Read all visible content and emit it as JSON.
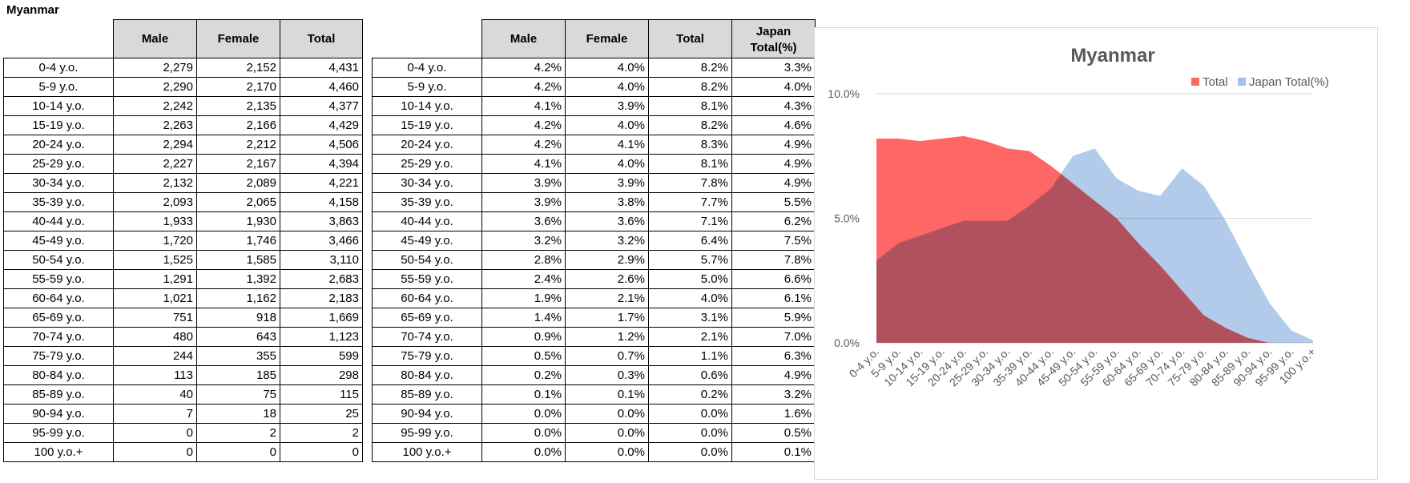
{
  "sheet_title": "Myanmar",
  "counts_table": {
    "headers": [
      "Male",
      "Female",
      "Total"
    ],
    "rows": [
      {
        "age": "0-4 y.o.",
        "male": "2,279",
        "female": "2,152",
        "total": "4,431"
      },
      {
        "age": "5-9 y.o.",
        "male": "2,290",
        "female": "2,170",
        "total": "4,460"
      },
      {
        "age": "10-14 y.o.",
        "male": "2,242",
        "female": "2,135",
        "total": "4,377"
      },
      {
        "age": "15-19 y.o.",
        "male": "2,263",
        "female": "2,166",
        "total": "4,429"
      },
      {
        "age": "20-24 y.o.",
        "male": "2,294",
        "female": "2,212",
        "total": "4,506"
      },
      {
        "age": "25-29 y.o.",
        "male": "2,227",
        "female": "2,167",
        "total": "4,394"
      },
      {
        "age": "30-34 y.o.",
        "male": "2,132",
        "female": "2,089",
        "total": "4,221"
      },
      {
        "age": "35-39 y.o.",
        "male": "2,093",
        "female": "2,065",
        "total": "4,158"
      },
      {
        "age": "40-44 y.o.",
        "male": "1,933",
        "female": "1,930",
        "total": "3,863"
      },
      {
        "age": "45-49 y.o.",
        "male": "1,720",
        "female": "1,746",
        "total": "3,466"
      },
      {
        "age": "50-54 y.o.",
        "male": "1,525",
        "female": "1,585",
        "total": "3,110"
      },
      {
        "age": "55-59 y.o.",
        "male": "1,291",
        "female": "1,392",
        "total": "2,683"
      },
      {
        "age": "60-64 y.o.",
        "male": "1,021",
        "female": "1,162",
        "total": "2,183"
      },
      {
        "age": "65-69 y.o.",
        "male": "751",
        "female": "918",
        "total": "1,669"
      },
      {
        "age": "70-74 y.o.",
        "male": "480",
        "female": "643",
        "total": "1,123"
      },
      {
        "age": "75-79 y.o.",
        "male": "244",
        "female": "355",
        "total": "599"
      },
      {
        "age": "80-84 y.o.",
        "male": "113",
        "female": "185",
        "total": "298"
      },
      {
        "age": "85-89 y.o.",
        "male": "40",
        "female": "75",
        "total": "115"
      },
      {
        "age": "90-94 y.o.",
        "male": "7",
        "female": "18",
        "total": "25"
      },
      {
        "age": "95-99 y.o.",
        "male": "0",
        "female": "2",
        "total": "2"
      },
      {
        "age": "100 y.o.+",
        "male": "0",
        "female": "0",
        "total": "0"
      }
    ]
  },
  "pct_table": {
    "headers": [
      "Male",
      "Female",
      "Total",
      "Japan",
      "Total(%)"
    ],
    "rows": [
      {
        "age": "0-4 y.o.",
        "male": "4.2%",
        "female": "4.0%",
        "total": "8.2%",
        "japan": "3.3%"
      },
      {
        "age": "5-9 y.o.",
        "male": "4.2%",
        "female": "4.0%",
        "total": "8.2%",
        "japan": "4.0%"
      },
      {
        "age": "10-14 y.o.",
        "male": "4.1%",
        "female": "3.9%",
        "total": "8.1%",
        "japan": "4.3%"
      },
      {
        "age": "15-19 y.o.",
        "male": "4.2%",
        "female": "4.0%",
        "total": "8.2%",
        "japan": "4.6%"
      },
      {
        "age": "20-24 y.o.",
        "male": "4.2%",
        "female": "4.1%",
        "total": "8.3%",
        "japan": "4.9%"
      },
      {
        "age": "25-29 y.o.",
        "male": "4.1%",
        "female": "4.0%",
        "total": "8.1%",
        "japan": "4.9%"
      },
      {
        "age": "30-34 y.o.",
        "male": "3.9%",
        "female": "3.9%",
        "total": "7.8%",
        "japan": "4.9%"
      },
      {
        "age": "35-39 y.o.",
        "male": "3.9%",
        "female": "3.8%",
        "total": "7.7%",
        "japan": "5.5%"
      },
      {
        "age": "40-44 y.o.",
        "male": "3.6%",
        "female": "3.6%",
        "total": "7.1%",
        "japan": "6.2%"
      },
      {
        "age": "45-49 y.o.",
        "male": "3.2%",
        "female": "3.2%",
        "total": "6.4%",
        "japan": "7.5%"
      },
      {
        "age": "50-54 y.o.",
        "male": "2.8%",
        "female": "2.9%",
        "total": "5.7%",
        "japan": "7.8%"
      },
      {
        "age": "55-59 y.o.",
        "male": "2.4%",
        "female": "2.6%",
        "total": "5.0%",
        "japan": "6.6%"
      },
      {
        "age": "60-64 y.o.",
        "male": "1.9%",
        "female": "2.1%",
        "total": "4.0%",
        "japan": "6.1%"
      },
      {
        "age": "65-69 y.o.",
        "male": "1.4%",
        "female": "1.7%",
        "total": "3.1%",
        "japan": "5.9%"
      },
      {
        "age": "70-74 y.o.",
        "male": "0.9%",
        "female": "1.2%",
        "total": "2.1%",
        "japan": "7.0%"
      },
      {
        "age": "75-79 y.o.",
        "male": "0.5%",
        "female": "0.7%",
        "total": "1.1%",
        "japan": "6.3%"
      },
      {
        "age": "80-84 y.o.",
        "male": "0.2%",
        "female": "0.3%",
        "total": "0.6%",
        "japan": "4.9%"
      },
      {
        "age": "85-89 y.o.",
        "male": "0.1%",
        "female": "0.1%",
        "total": "0.2%",
        "japan": "3.2%"
      },
      {
        "age": "90-94 y.o.",
        "male": "0.0%",
        "female": "0.0%",
        "total": "0.0%",
        "japan": "1.6%"
      },
      {
        "age": "95-99 y.o.",
        "male": "0.0%",
        "female": "0.0%",
        "total": "0.0%",
        "japan": "0.5%"
      },
      {
        "age": "100 y.o.+",
        "male": "0.0%",
        "female": "0.0%",
        "total": "0.0%",
        "japan": "0.1%"
      }
    ]
  },
  "chart_data": {
    "type": "area",
    "title": "Myanmar",
    "categories": [
      "0-4 y.o.",
      "5-9 y.o.",
      "10-14 y.o.",
      "15-19 y.o.",
      "20-24 y.o.",
      "25-29 y.o.",
      "30-34 y.o.",
      "35-39 y.o.",
      "40-44 y.o.",
      "45-49 y.o.",
      "50-54 y.o.",
      "55-59 y.o.",
      "60-64 y.o.",
      "65-69 y.o.",
      "70-74 y.o.",
      "75-79 y.o.",
      "80-84 y.o.",
      "85-89 y.o.",
      "90-94 y.o.",
      "95-99 y.o.",
      "100 y.o.+"
    ],
    "series": [
      {
        "name": "Total",
        "color": "#ff6666",
        "values": [
          8.2,
          8.2,
          8.1,
          8.2,
          8.3,
          8.1,
          7.8,
          7.7,
          7.1,
          6.4,
          5.7,
          5.0,
          4.0,
          3.1,
          2.1,
          1.1,
          0.6,
          0.2,
          0.0,
          0.0,
          0.0
        ]
      },
      {
        "name": "Japan Total(%)",
        "color": "#a4c2e8",
        "values": [
          3.3,
          4.0,
          4.3,
          4.6,
          4.9,
          4.9,
          4.9,
          5.5,
          6.2,
          7.5,
          7.8,
          6.6,
          6.1,
          5.9,
          7.0,
          6.3,
          4.9,
          3.2,
          1.6,
          0.5,
          0.1
        ]
      }
    ],
    "ylim": [
      0,
      10
    ],
    "yticks": [
      "0.0%",
      "5.0%",
      "10.0%"
    ],
    "ytick_values": [
      0,
      5,
      10
    ],
    "legend": "top-right",
    "grid": true
  }
}
